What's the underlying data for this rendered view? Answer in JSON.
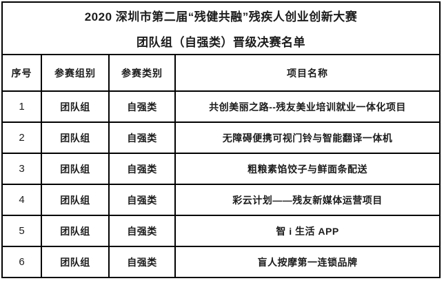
{
  "colors": {
    "background": "#ffffff",
    "border": "#000000",
    "text": "#1c1c1c"
  },
  "document": {
    "title_line1": "2020 深圳市第二届“残健共融”残疾人创业创新大赛",
    "title_line2": "团队组（自强类）晋级决赛名单",
    "table": {
      "headers": [
        "序号",
        "参赛组别",
        "参赛类别",
        "项目名称"
      ],
      "rows": [
        {
          "seq": "1",
          "group": "团队组",
          "category": "自强类",
          "project": "共创美丽之路--残友美业培训就业一体化项目"
        },
        {
          "seq": "2",
          "group": "团队组",
          "category": "自强类",
          "project": "无障碍便携可视门铃与智能翻译一体机"
        },
        {
          "seq": "3",
          "group": "团队组",
          "category": "自强类",
          "project": "粗粮素馅饺子与鲜面条配送"
        },
        {
          "seq": "4",
          "group": "团队组",
          "category": "自强类",
          "project": "彩云计划——残友新媒体运营项目"
        },
        {
          "seq": "5",
          "group": "团队组",
          "category": "自强类",
          "project": "智 i 生活 APP"
        },
        {
          "seq": "6",
          "group": "团队组",
          "category": "自强类",
          "project": "盲人按摩第一连锁品牌"
        }
      ]
    }
  }
}
